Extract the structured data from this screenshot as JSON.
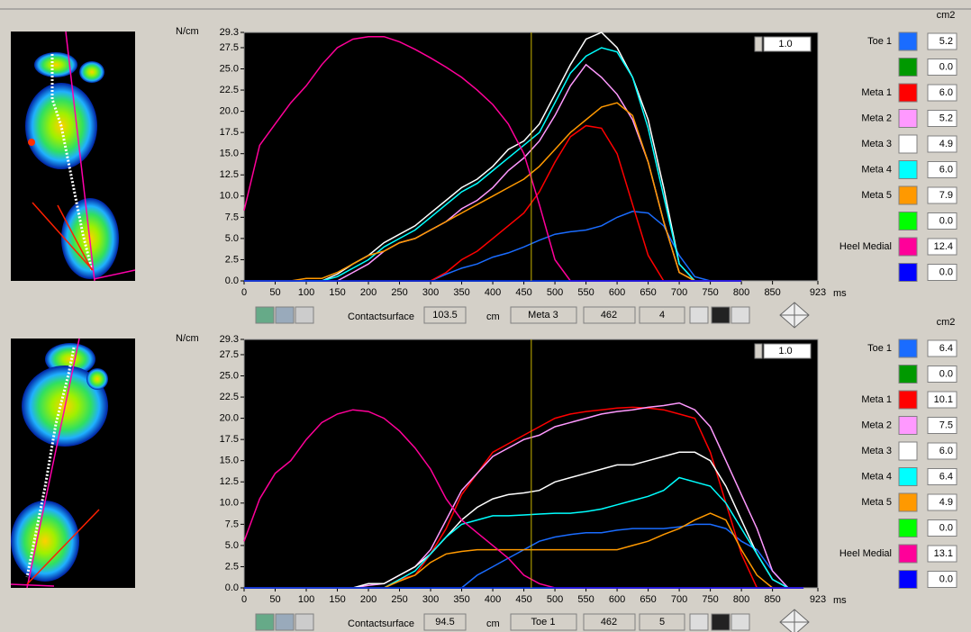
{
  "chart_data": [
    {
      "type": "line",
      "y_label": "N/cm",
      "x_label": "ms",
      "legend_unit": "cm2",
      "scale": "1.0",
      "contact_label": "Contactsurface",
      "contact_value": "103.5",
      "contact_unit": "cm",
      "selected": "Meta 3",
      "cursor": 462,
      "count": "4",
      "xlim": [
        0,
        923
      ],
      "ylim": [
        0,
        29.3
      ],
      "xticks": [
        0,
        50,
        100,
        150,
        200,
        250,
        300,
        350,
        400,
        450,
        500,
        550,
        600,
        650,
        700,
        750,
        800,
        850,
        923
      ],
      "yticks": [
        {
          "value": 0,
          "label": "0.0"
        },
        2.5,
        {
          "value": 5,
          "label": "5.0"
        },
        7.5,
        {
          "value": 10,
          "label": "10.0"
        },
        12.5,
        {
          "value": 15,
          "label": "15.0"
        },
        17.5,
        {
          "value": 20,
          "label": "20.0"
        },
        22.5,
        {
          "value": 25,
          "label": "25.0"
        },
        27.5,
        29.3
      ],
      "x": [
        0,
        25,
        50,
        75,
        100,
        125,
        150,
        175,
        200,
        225,
        250,
        275,
        300,
        325,
        350,
        375,
        400,
        425,
        450,
        475,
        500,
        525,
        550,
        575,
        600,
        625,
        650,
        675,
        700,
        725,
        750,
        775,
        800
      ],
      "series": [
        {
          "name": "Toe 1",
          "color": "#1a6cff",
          "area": "5.2",
          "values": [
            0,
            0,
            0,
            0,
            0,
            0,
            0,
            0,
            0,
            0,
            0,
            0,
            0,
            0.8,
            1.5,
            2,
            2.8,
            3.3,
            4,
            4.8,
            5.5,
            5.8,
            6,
            6.5,
            7.5,
            8.2,
            8,
            6.5,
            3,
            0.5,
            0,
            0,
            0
          ]
        },
        {
          "name": null,
          "color": "#009900",
          "area": "0.0",
          "values": [
            0,
            0,
            0,
            0,
            0,
            0,
            0,
            0,
            0,
            0,
            0,
            0,
            0,
            0,
            0,
            0,
            0,
            0,
            0,
            0,
            0,
            0,
            0,
            0,
            0,
            0,
            0,
            0,
            0,
            0,
            0,
            0,
            0
          ]
        },
        {
          "name": "Meta 1",
          "color": "#ff0000",
          "area": "6.0",
          "values": [
            0,
            0,
            0,
            0,
            0,
            0,
            0,
            0,
            0,
            0,
            0,
            0,
            0,
            1,
            2.5,
            3.5,
            5,
            6.5,
            8,
            10.5,
            14,
            17,
            18.3,
            18,
            15,
            9,
            3,
            0,
            0,
            0,
            0,
            0,
            0
          ]
        },
        {
          "name": "Meta 2",
          "color": "#ff99ff",
          "area": "5.2",
          "values": [
            0,
            0,
            0,
            0,
            0,
            0,
            0,
            1,
            2,
            3.5,
            4.5,
            5,
            6,
            7,
            8.5,
            9.5,
            11,
            13,
            14.5,
            16.5,
            19.5,
            23,
            25.5,
            24,
            22,
            19,
            14,
            7,
            1,
            0,
            0,
            0,
            0
          ]
        },
        {
          "name": "Meta 3",
          "color": "#ffffff",
          "area": "4.9",
          "values": [
            0,
            0,
            0,
            0,
            0,
            0,
            0.8,
            2,
            3,
            4.5,
            5.5,
            6.5,
            8,
            9.5,
            11,
            12,
            13.5,
            15.5,
            16.5,
            18.5,
            22,
            25.5,
            28.5,
            29.3,
            27.5,
            24,
            19,
            11,
            2,
            0,
            0,
            0,
            0
          ]
        },
        {
          "name": "Meta 4",
          "color": "#00ffff",
          "area": "6.0",
          "values": [
            0,
            0,
            0,
            0,
            0,
            0,
            0.5,
            1.5,
            2.5,
            4,
            5,
            6,
            7.5,
            9,
            10.5,
            11.5,
            13,
            14.5,
            16,
            17.5,
            21,
            24.5,
            26.5,
            27.5,
            27,
            24,
            18,
            10,
            2,
            0,
            0,
            0,
            0
          ]
        },
        {
          "name": "Meta 5",
          "color": "#ff9900",
          "area": "7.9",
          "values": [
            0,
            0,
            0,
            0,
            0.3,
            0.3,
            1,
            2,
            3,
            3.5,
            4.5,
            5,
            6,
            7,
            8,
            9,
            10,
            11,
            12,
            13.5,
            15.5,
            17.5,
            19,
            20.5,
            21,
            19.5,
            14,
            7,
            1,
            0,
            0,
            0,
            0
          ]
        },
        {
          "name": null,
          "color": "#00ff00",
          "area": "0.0",
          "values": [
            0,
            0,
            0,
            0,
            0,
            0,
            0,
            0,
            0,
            0,
            0,
            0,
            0,
            0,
            0,
            0,
            0,
            0,
            0,
            0,
            0,
            0,
            0,
            0,
            0,
            0,
            0,
            0,
            0,
            0,
            0,
            0,
            0
          ]
        },
        {
          "name": "Heel Medial",
          "color": "#ff0099",
          "area": "12.4",
          "values": [
            8.3,
            16,
            18.5,
            21,
            23,
            25.5,
            27.5,
            28.5,
            28.8,
            28.8,
            28.2,
            27.3,
            26.3,
            25.2,
            24,
            22.5,
            20.8,
            18.5,
            15,
            9,
            2.5,
            0,
            0,
            0,
            0,
            0,
            0,
            0,
            0,
            0,
            0,
            0,
            0
          ]
        },
        {
          "name": null,
          "color": "#0000ff",
          "area": "0.0",
          "values": [
            0,
            0,
            0,
            0,
            0,
            0,
            0,
            0,
            0,
            0,
            0,
            0,
            0,
            0,
            0,
            0,
            0,
            0,
            0,
            0,
            0,
            0,
            0,
            0,
            0,
            0,
            0,
            0,
            0,
            0,
            0,
            0,
            0
          ]
        }
      ]
    },
    {
      "type": "line",
      "y_label": "N/cm",
      "x_label": "ms",
      "legend_unit": "cm2",
      "scale": "1.0",
      "contact_label": "Contactsurface",
      "contact_value": "94.5",
      "contact_unit": "cm",
      "selected": "Toe 1",
      "cursor": 462,
      "count": "5",
      "xlim": [
        0,
        923
      ],
      "ylim": [
        0,
        29.3
      ],
      "xticks": [
        0,
        50,
        100,
        150,
        200,
        250,
        300,
        350,
        400,
        450,
        500,
        550,
        600,
        650,
        700,
        750,
        800,
        850,
        923
      ],
      "yticks": [
        {
          "value": 0,
          "label": "0.0"
        },
        2.5,
        {
          "value": 5,
          "label": "5.0"
        },
        7.5,
        {
          "value": 10,
          "label": "10.0"
        },
        12.5,
        {
          "value": 15,
          "label": "15.0"
        },
        17.5,
        {
          "value": 20,
          "label": "20.0"
        },
        22.5,
        {
          "value": 25,
          "label": "25.0"
        },
        27.5,
        29.3
      ],
      "x": [
        0,
        25,
        50,
        75,
        100,
        125,
        150,
        175,
        200,
        225,
        250,
        275,
        300,
        325,
        350,
        375,
        400,
        425,
        450,
        475,
        500,
        525,
        550,
        575,
        600,
        625,
        650,
        675,
        700,
        725,
        750,
        775,
        800,
        825,
        850,
        875,
        900
      ],
      "series": [
        {
          "name": "Toe 1",
          "color": "#1a6cff",
          "area": "6.4",
          "values": [
            0,
            0,
            0,
            0,
            0,
            0,
            0,
            0,
            0,
            0,
            0,
            0,
            0,
            0,
            0,
            1.5,
            2.5,
            3.5,
            4.5,
            5.5,
            6,
            6.3,
            6.5,
            6.5,
            6.8,
            7,
            7,
            7,
            7.2,
            7.5,
            7.5,
            7,
            5.5,
            4.5,
            2,
            0,
            0
          ]
        },
        {
          "name": null,
          "color": "#009900",
          "area": "0.0",
          "values": [
            0,
            0,
            0,
            0,
            0,
            0,
            0,
            0,
            0,
            0,
            0,
            0,
            0,
            0,
            0,
            0,
            0,
            0,
            0,
            0,
            0,
            0,
            0,
            0,
            0,
            0,
            0,
            0,
            0,
            0,
            0,
            0,
            0,
            0,
            0,
            0,
            0
          ]
        },
        {
          "name": "Meta 1",
          "color": "#ff0000",
          "area": "10.1",
          "values": [
            0,
            0,
            0,
            0,
            0,
            0,
            0,
            0,
            0,
            0,
            1,
            1.5,
            4,
            7,
            11,
            13.5,
            16,
            17,
            18,
            19,
            20,
            20.5,
            20.8,
            21,
            21.2,
            21.3,
            21.2,
            21,
            20.5,
            20,
            16,
            10,
            4,
            0,
            0,
            0,
            0
          ]
        },
        {
          "name": "Meta 2",
          "color": "#ff99ff",
          "area": "7.5",
          "values": [
            0,
            0,
            0,
            0,
            0,
            0,
            0,
            0,
            0.3,
            0.5,
            1.5,
            2.5,
            4.5,
            8,
            11.5,
            13.5,
            15.5,
            16.5,
            17.5,
            18,
            19,
            19.5,
            20,
            20.5,
            20.8,
            21,
            21.3,
            21.5,
            21.8,
            21,
            19,
            15,
            11,
            7,
            2,
            0,
            0
          ]
        },
        {
          "name": "Meta 3",
          "color": "#ffffff",
          "area": "6.0",
          "values": [
            0,
            0,
            0,
            0,
            0,
            0,
            0,
            0,
            0.5,
            0.5,
            1.5,
            2.5,
            4,
            6,
            8,
            9.5,
            10.5,
            11,
            11.2,
            11.5,
            12.5,
            13,
            13.5,
            14,
            14.5,
            14.5,
            15,
            15.5,
            16,
            16,
            15,
            12,
            8,
            4,
            1,
            0,
            0
          ]
        },
        {
          "name": "Meta 4",
          "color": "#00ffff",
          "area": "6.4",
          "values": [
            0,
            0,
            0,
            0,
            0,
            0,
            0,
            0,
            0,
            0,
            1,
            2,
            4,
            6,
            7.5,
            8,
            8.5,
            8.5,
            8.6,
            8.7,
            8.8,
            8.8,
            9,
            9.3,
            9.8,
            10.3,
            10.8,
            11.5,
            13,
            12.5,
            12,
            10,
            7,
            4,
            1,
            0,
            0
          ]
        },
        {
          "name": "Meta 5",
          "color": "#ff9900",
          "area": "4.9",
          "values": [
            0,
            0,
            0,
            0,
            0,
            0,
            0,
            0,
            0,
            0,
            0.8,
            1.5,
            3,
            4,
            4.3,
            4.5,
            4.5,
            4.5,
            4.5,
            4.5,
            4.5,
            4.5,
            4.5,
            4.5,
            4.5,
            5,
            5.5,
            6.3,
            7,
            8,
            8.8,
            8,
            4.5,
            1.5,
            0,
            0,
            0
          ]
        },
        {
          "name": null,
          "color": "#00ff00",
          "area": "0.0",
          "values": [
            0,
            0,
            0,
            0,
            0,
            0,
            0,
            0,
            0,
            0,
            0,
            0,
            0,
            0,
            0,
            0,
            0,
            0,
            0,
            0,
            0,
            0,
            0,
            0,
            0,
            0,
            0,
            0,
            0,
            0,
            0,
            0,
            0,
            0,
            0,
            0,
            0
          ]
        },
        {
          "name": "Heel Medial",
          "color": "#ff0099",
          "area": "13.1",
          "values": [
            5.5,
            10.5,
            13.5,
            15,
            17.5,
            19.5,
            20.5,
            21,
            20.8,
            20,
            18.5,
            16.5,
            14,
            10.5,
            8,
            6.5,
            5,
            3.5,
            1.5,
            0.5,
            0,
            0,
            0,
            0,
            0,
            0,
            0,
            0,
            0,
            0,
            0,
            0,
            0,
            0,
            0,
            0,
            0
          ]
        },
        {
          "name": null,
          "color": "#0000ff",
          "area": "0.0",
          "values": [
            0,
            0,
            0,
            0,
            0,
            0,
            0,
            0,
            0,
            0,
            0,
            0,
            0,
            0,
            0,
            0,
            0,
            0,
            0,
            0,
            0,
            0,
            0,
            0,
            0,
            0,
            0,
            0,
            0,
            0,
            0,
            0,
            0,
            0,
            0,
            0,
            0
          ]
        }
      ]
    }
  ]
}
